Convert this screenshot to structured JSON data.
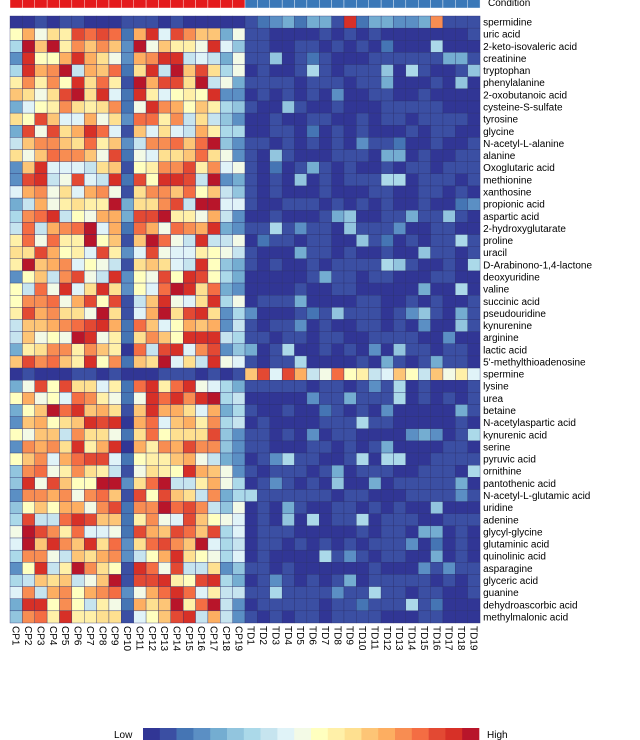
{
  "chart_data": {
    "type": "heatmap",
    "title": "",
    "condition_label": "Condition",
    "condition_colors": {
      "CP": "#e41a1c",
      "TD": "#3a78b8"
    },
    "columns": [
      "CP1",
      "CP2",
      "CP3",
      "CP4",
      "CP5",
      "CP6",
      "CP7",
      "CP8",
      "CP9",
      "CP10",
      "CP11",
      "CP12",
      "CP13",
      "CP14",
      "CP15",
      "CP16",
      "CP17",
      "CP18",
      "CP19",
      "TD1",
      "TD2",
      "TD3",
      "TD4",
      "TD5",
      "TD6",
      "TD7",
      "TD8",
      "TD9",
      "TD10",
      "TD11",
      "TD12",
      "TD13",
      "TD14",
      "TD15",
      "TD16",
      "TD17",
      "TD18",
      "TD19"
    ],
    "rows": [
      "spermidine",
      "uric acid",
      "2-keto-isovaleric acid",
      "creatinine",
      "tryptophan",
      "phenylalanine",
      "2-oxobutanoic acid",
      "cysteine-S-sulfate",
      "tyrosine",
      "glycine",
      "N-acetyl-L-alanine",
      "alanine",
      "Oxoglutaric acid",
      "methionine",
      "xanthosine",
      "propionic acid",
      "aspartic acid",
      "2-hydroxyglutarate",
      "proline",
      "uracil",
      "D-Arabinono-1,4-lactone",
      "deoxyuridine",
      "valine",
      "succinic acid",
      "pseudouridine",
      "kynurenine",
      "arginine",
      "lactic acid",
      "5'-methylthioadenosine",
      "spermine",
      "lysine",
      "urea",
      "betaine",
      "N-acetylaspartic acid",
      "kynurenic acid",
      "serine",
      "pyruvic acid",
      "ornithine",
      "pantothenic acid",
      "N-acetyl-L-glutamic acid",
      "uridine",
      "adenine",
      "glycyl-glycine",
      "glutaminic acid",
      "quinolinic acid",
      "asparagine",
      "glyceric acid",
      "guanine",
      "dehydroascorbic acid",
      "methylmalonic acid"
    ],
    "scale": {
      "min": 0,
      "max": 1,
      "low_label": "Low",
      "high_label": "High"
    },
    "palette": [
      "#313695",
      "#3b4fa3",
      "#4575b4",
      "#5b8fc4",
      "#74add1",
      "#92c5de",
      "#abd9e9",
      "#c6e4ef",
      "#e0f3f8",
      "#f3fae6",
      "#ffffbf",
      "#fff0a8",
      "#fee090",
      "#fdc576",
      "#fdae61",
      "#f88d52",
      "#f46d43",
      "#e34933",
      "#d73027",
      "#b8152a"
    ],
    "special_rows": {
      "spermidine": "dark for CP, warm spots in TD",
      "spermine": "dark for CP, light-to-red across TD"
    },
    "seed": 20240518
  }
}
